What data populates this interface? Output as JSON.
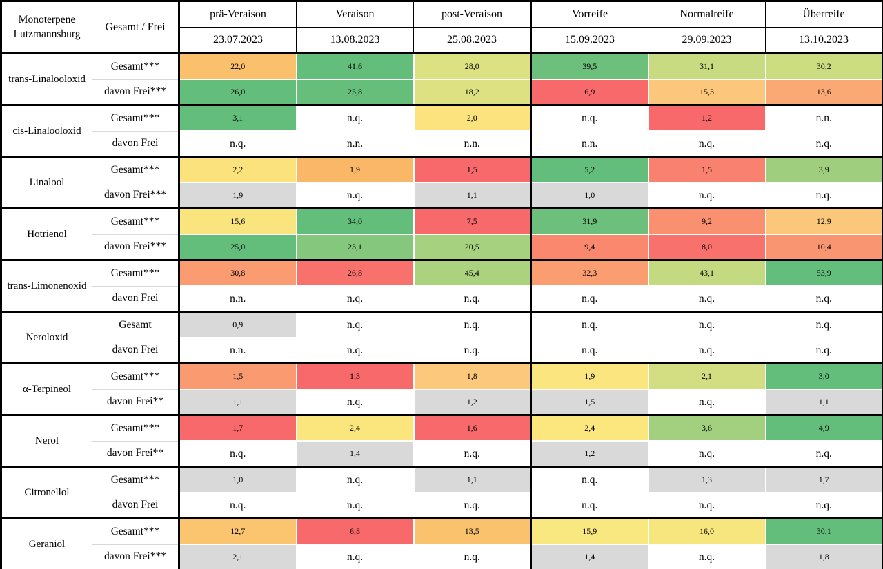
{
  "colors": {
    "grid_black": "#000000",
    "cell_gap_white": "#FFFFFF",
    "na_gray": "#D9D9D9",
    "scale_min_red": "#F8696B",
    "scale_mid_yellow": "#FFEB84",
    "scale_max_green": "#63BE7B"
  },
  "chart_data": {
    "type": "heatmap",
    "title": "Monoterpene Lutzmannsburg",
    "corner": {
      "line1": "Monoterpene",
      "line2": "Lutzmannsburg"
    },
    "row_header": "Gesamt / Frei",
    "phases": [
      {
        "label": "prä-Veraison",
        "date": "23.07.2023"
      },
      {
        "label": "Veraison",
        "date": "13.08.2023"
      },
      {
        "label": "post-Veraison",
        "date": "25.08.2023"
      },
      {
        "label": "Vorreife",
        "date": "15.09.2023"
      },
      {
        "label": "Normalreife",
        "date": "29.09.2023"
      },
      {
        "label": "Überreife",
        "date": "13.10.2023"
      }
    ],
    "compounds": [
      {
        "name": "trans-Linalooloxid",
        "rows": [
          {
            "label": "Gesamt***",
            "cells": [
              {
                "v": "22,0",
                "bg": "#FBC06C"
              },
              {
                "v": "41,6",
                "bg": "#63BE7B"
              },
              {
                "v": "28,0",
                "bg": "#DCE182"
              },
              {
                "v": "39,5",
                "bg": "#6DC07C"
              },
              {
                "v": "31,1",
                "bg": "#C8DB80"
              },
              {
                "v": "30,2",
                "bg": "#CCDC81"
              }
            ]
          },
          {
            "label": "davon Frei***",
            "cells": [
              {
                "v": "26,0",
                "bg": "#63BE7B"
              },
              {
                "v": "25,8",
                "bg": "#65BF7B"
              },
              {
                "v": "18,2",
                "bg": "#DEE182"
              },
              {
                "v": "6,9",
                "bg": "#F8696B"
              },
              {
                "v": "15,3",
                "bg": "#FCC77D"
              },
              {
                "v": "13,6",
                "bg": "#FAA874"
              }
            ]
          }
        ]
      },
      {
        "name": "cis-Linalooloxid",
        "rows": [
          {
            "label": "Gesamt***",
            "cells": [
              {
                "v": "3,1",
                "bg": "#63BE7B"
              },
              {
                "v": "n.q.",
                "bg": "#FFFFFF"
              },
              {
                "v": "2,0",
                "bg": "#FCE37D"
              },
              {
                "v": "n.q.",
                "bg": "#FFFFFF"
              },
              {
                "v": "1,2",
                "bg": "#F8696B"
              },
              {
                "v": "n.n.",
                "bg": "#FFFFFF"
              }
            ]
          },
          {
            "label": "davon Frei",
            "cells": [
              {
                "v": "n.q.",
                "bg": "#FFFFFF"
              },
              {
                "v": "n.n.",
                "bg": "#FFFFFF"
              },
              {
                "v": "n.n.",
                "bg": "#FFFFFF"
              },
              {
                "v": "n.n.",
                "bg": "#FFFFFF"
              },
              {
                "v": "n.q.",
                "bg": "#FFFFFF"
              },
              {
                "v": "n.q.",
                "bg": "#FFFFFF"
              }
            ]
          }
        ]
      },
      {
        "name": "Linalool",
        "rows": [
          {
            "label": "Gesamt***",
            "cells": [
              {
                "v": "2,2",
                "bg": "#FBE27D"
              },
              {
                "v": "1,9",
                "bg": "#FBB768"
              },
              {
                "v": "1,5",
                "bg": "#F8696B"
              },
              {
                "v": "5,2",
                "bg": "#63BE7B"
              },
              {
                "v": "1,5",
                "bg": "#F9816F"
              },
              {
                "v": "3,9",
                "bg": "#9FCF7E"
              }
            ]
          },
          {
            "label": "davon Frei***",
            "cells": [
              {
                "v": "1,9",
                "bg": "#D9D9D9"
              },
              {
                "v": "n.q.",
                "bg": "#FFFFFF"
              },
              {
                "v": "1,1",
                "bg": "#D9D9D9"
              },
              {
                "v": "1,0",
                "bg": "#D9D9D9"
              },
              {
                "v": "n.q.",
                "bg": "#FFFFFF"
              },
              {
                "v": "n.q.",
                "bg": "#FFFFFF"
              }
            ]
          }
        ]
      },
      {
        "name": "Hotrienol",
        "rows": [
          {
            "label": "Gesamt***",
            "cells": [
              {
                "v": "15,6",
                "bg": "#FAE47E"
              },
              {
                "v": "34,0",
                "bg": "#63BE7B"
              },
              {
                "v": "7,5",
                "bg": "#F8696B"
              },
              {
                "v": "31,9",
                "bg": "#6CC07B"
              },
              {
                "v": "9,2",
                "bg": "#F9906F"
              },
              {
                "v": "12,9",
                "bg": "#FBC77B"
              }
            ]
          },
          {
            "label": "davon Frei***",
            "cells": [
              {
                "v": "25,0",
                "bg": "#63BE7B"
              },
              {
                "v": "23,1",
                "bg": "#84C77D"
              },
              {
                "v": "20,5",
                "bg": "#A6D17F"
              },
              {
                "v": "9,4",
                "bg": "#F9886F"
              },
              {
                "v": "8,0",
                "bg": "#F8716C"
              },
              {
                "v": "10,4",
                "bg": "#FA9572"
              }
            ]
          }
        ]
      },
      {
        "name": "trans-Limonenoxid",
        "rows": [
          {
            "label": "Gesamt***",
            "cells": [
              {
                "v": "30,8",
                "bg": "#FA9B71"
              },
              {
                "v": "26,8",
                "bg": "#F8716D"
              },
              {
                "v": "45,4",
                "bg": "#ABD37F"
              },
              {
                "v": "32,3",
                "bg": "#FA9E72"
              },
              {
                "v": "43,1",
                "bg": "#C4DA80"
              },
              {
                "v": "53,9",
                "bg": "#63BE7B"
              }
            ]
          },
          {
            "label": "davon Frei",
            "cells": [
              {
                "v": "n.n.",
                "bg": "#FFFFFF"
              },
              {
                "v": "n.q.",
                "bg": "#FFFFFF"
              },
              {
                "v": "n.q.",
                "bg": "#FFFFFF"
              },
              {
                "v": "n.q.",
                "bg": "#FFFFFF"
              },
              {
                "v": "n.q.",
                "bg": "#FFFFFF"
              },
              {
                "v": "n.q.",
                "bg": "#FFFFFF"
              }
            ]
          }
        ]
      },
      {
        "name": "Neroloxid",
        "rows": [
          {
            "label": "Gesamt",
            "cells": [
              {
                "v": "0,9",
                "bg": "#D9D9D9"
              },
              {
                "v": "n.q.",
                "bg": "#FFFFFF"
              },
              {
                "v": "n.q.",
                "bg": "#FFFFFF"
              },
              {
                "v": "n.q.",
                "bg": "#FFFFFF"
              },
              {
                "v": "n.q.",
                "bg": "#FFFFFF"
              },
              {
                "v": "n.q.",
                "bg": "#FFFFFF"
              }
            ]
          },
          {
            "label": "davon Frei",
            "cells": [
              {
                "v": "n.n.",
                "bg": "#FFFFFF"
              },
              {
                "v": "n.q.",
                "bg": "#FFFFFF"
              },
              {
                "v": "n.q.",
                "bg": "#FFFFFF"
              },
              {
                "v": "n.q.",
                "bg": "#FFFFFF"
              },
              {
                "v": "n.q.",
                "bg": "#FFFFFF"
              },
              {
                "v": "n.q.",
                "bg": "#FFFFFF"
              }
            ]
          }
        ]
      },
      {
        "name": "α-Terpineol",
        "rows": [
          {
            "label": "Gesamt***",
            "cells": [
              {
                "v": "1,5",
                "bg": "#FA9A71"
              },
              {
                "v": "1,3",
                "bg": "#F8696B"
              },
              {
                "v": "1,8",
                "bg": "#FCC97C"
              },
              {
                "v": "1,9",
                "bg": "#FBE57E"
              },
              {
                "v": "2,1",
                "bg": "#D2DE81"
              },
              {
                "v": "3,0",
                "bg": "#63BE7B"
              }
            ]
          },
          {
            "label": "davon Frei**",
            "cells": [
              {
                "v": "1,1",
                "bg": "#D9D9D9"
              },
              {
                "v": "n.q.",
                "bg": "#FFFFFF"
              },
              {
                "v": "1,2",
                "bg": "#D9D9D9"
              },
              {
                "v": "1,5",
                "bg": "#D9D9D9"
              },
              {
                "v": "n.q.",
                "bg": "#FFFFFF"
              },
              {
                "v": "1,1",
                "bg": "#D9D9D9"
              }
            ]
          }
        ]
      },
      {
        "name": "Nerol",
        "rows": [
          {
            "label": "Gesamt***",
            "cells": [
              {
                "v": "1,7",
                "bg": "#F8696B"
              },
              {
                "v": "2,4",
                "bg": "#FBE67E"
              },
              {
                "v": "1,6",
                "bg": "#F8696B"
              },
              {
                "v": "2,4",
                "bg": "#FBE77E"
              },
              {
                "v": "3,6",
                "bg": "#A3D07E"
              },
              {
                "v": "4,9",
                "bg": "#63BE7B"
              }
            ]
          },
          {
            "label": "davon Frei**",
            "cells": [
              {
                "v": "n.q.",
                "bg": "#FFFFFF"
              },
              {
                "v": "1,4",
                "bg": "#D9D9D9"
              },
              {
                "v": "n.q.",
                "bg": "#FFFFFF"
              },
              {
                "v": "1,2",
                "bg": "#D9D9D9"
              },
              {
                "v": "n.q.",
                "bg": "#FFFFFF"
              },
              {
                "v": "n.q.",
                "bg": "#FFFFFF"
              }
            ]
          }
        ]
      },
      {
        "name": "Citronellol",
        "rows": [
          {
            "label": "Gesamt***",
            "cells": [
              {
                "v": "1,0",
                "bg": "#D9D9D9"
              },
              {
                "v": "n.q.",
                "bg": "#FFFFFF"
              },
              {
                "v": "1,1",
                "bg": "#D9D9D9"
              },
              {
                "v": "n.q.",
                "bg": "#FFFFFF"
              },
              {
                "v": "1,3",
                "bg": "#D9D9D9"
              },
              {
                "v": "1,7",
                "bg": "#D9D9D9"
              }
            ]
          },
          {
            "label": "davon Frei",
            "cells": [
              {
                "v": "n.q.",
                "bg": "#FFFFFF"
              },
              {
                "v": "n.q.",
                "bg": "#FFFFFF"
              },
              {
                "v": "n.q.",
                "bg": "#FFFFFF"
              },
              {
                "v": "n.q.",
                "bg": "#FFFFFF"
              },
              {
                "v": "n.q.",
                "bg": "#FFFFFF"
              },
              {
                "v": "n.q.",
                "bg": "#FFFFFF"
              }
            ]
          }
        ]
      },
      {
        "name": "Geraniol",
        "rows": [
          {
            "label": "Gesamt***",
            "cells": [
              {
                "v": "12,7",
                "bg": "#FBC46F"
              },
              {
                "v": "6,8",
                "bg": "#F8696B"
              },
              {
                "v": "13,5",
                "bg": "#FBC26E"
              },
              {
                "v": "15,9",
                "bg": "#F9E77F"
              },
              {
                "v": "16,0",
                "bg": "#F7E67E"
              },
              {
                "v": "30,1",
                "bg": "#63BE7B"
              }
            ]
          },
          {
            "label": "davon Frei***",
            "cells": [
              {
                "v": "2,1",
                "bg": "#D9D9D9"
              },
              {
                "v": "n.q.",
                "bg": "#FFFFFF"
              },
              {
                "v": "n.q.",
                "bg": "#FFFFFF"
              },
              {
                "v": "1,4",
                "bg": "#D9D9D9"
              },
              {
                "v": "n.q.",
                "bg": "#FFFFFF"
              },
              {
                "v": "1,8",
                "bg": "#D9D9D9"
              }
            ]
          }
        ]
      }
    ]
  }
}
